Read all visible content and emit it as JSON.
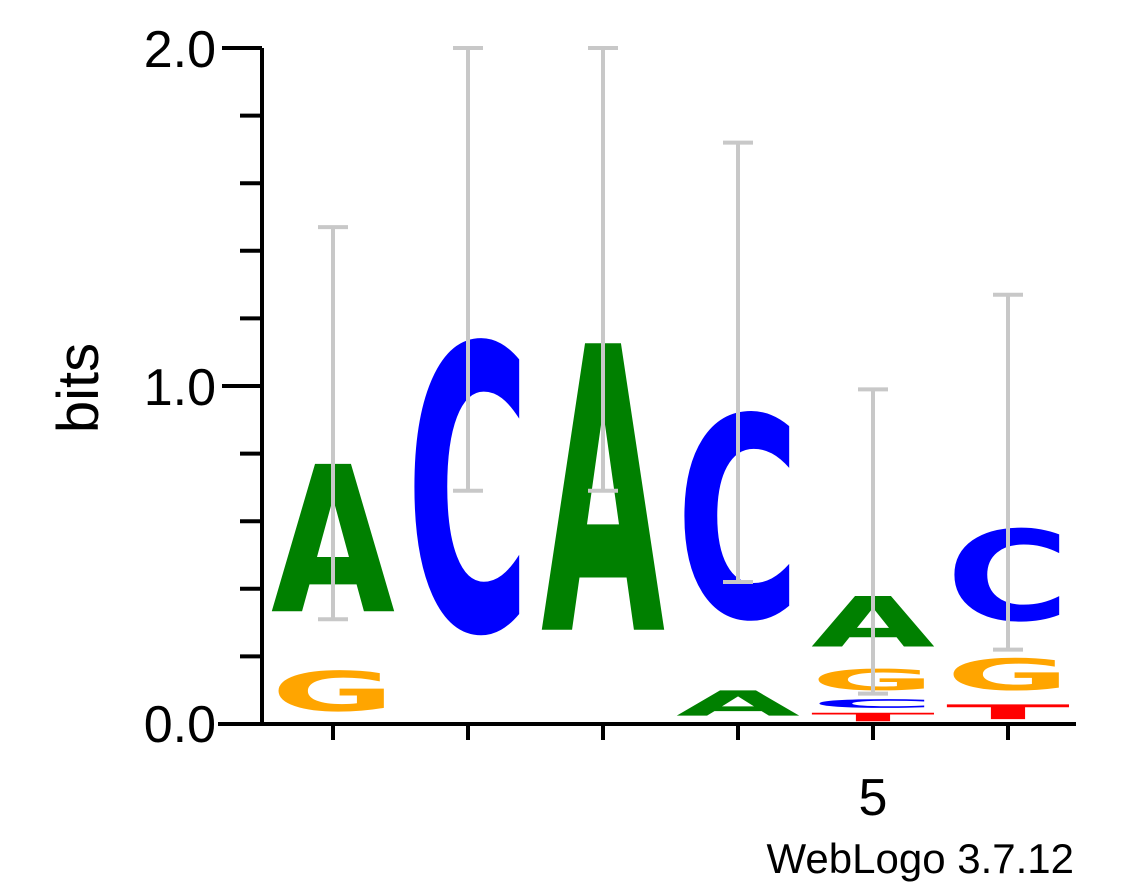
{
  "chart_data": {
    "type": "sequence-logo",
    "ylabel": "bits",
    "ylim": [
      0,
      2.0
    ],
    "y_ticks": [
      "0.0",
      "1.0",
      "2.0"
    ],
    "x_tick_labels": [
      "",
      "",
      "",
      "",
      "5",
      ""
    ],
    "credit": "WebLogo 3.7.12",
    "colors": {
      "A": "#008000",
      "C": "#0000ff",
      "G": "#ffa500",
      "T": "#ff0000"
    },
    "positions": [
      {
        "pos": 1,
        "letters": [
          {
            "char": "G",
            "bits": 0.19
          },
          {
            "char": "A",
            "bits": 0.7
          }
        ],
        "error": [
          0.31,
          1.47
        ]
      },
      {
        "pos": 2,
        "letters": [
          {
            "char": "C",
            "bits": 1.36
          }
        ],
        "error": [
          0.69,
          2.0
        ]
      },
      {
        "pos": 3,
        "letters": [
          {
            "char": "A",
            "bits": 1.36
          }
        ],
        "error": [
          0.69,
          2.0
        ]
      },
      {
        "pos": 4,
        "letters": [
          {
            "char": "A",
            "bits": 0.12
          },
          {
            "char": "C",
            "bits": 0.96
          }
        ],
        "error": [
          0.42,
          1.72
        ]
      },
      {
        "pos": 5,
        "letters": [
          {
            "char": "T",
            "bits": 0.04
          },
          {
            "char": "C",
            "bits": 0.04
          },
          {
            "char": "G",
            "bits": 0.1
          },
          {
            "char": "A",
            "bits": 0.24
          }
        ],
        "error": [
          0.09,
          0.99
        ]
      },
      {
        "pos": 6,
        "letters": [
          {
            "char": "T",
            "bits": 0.07
          },
          {
            "char": "G",
            "bits": 0.15
          },
          {
            "char": "C",
            "bits": 0.43
          }
        ],
        "error": [
          0.22,
          1.27
        ]
      }
    ]
  }
}
